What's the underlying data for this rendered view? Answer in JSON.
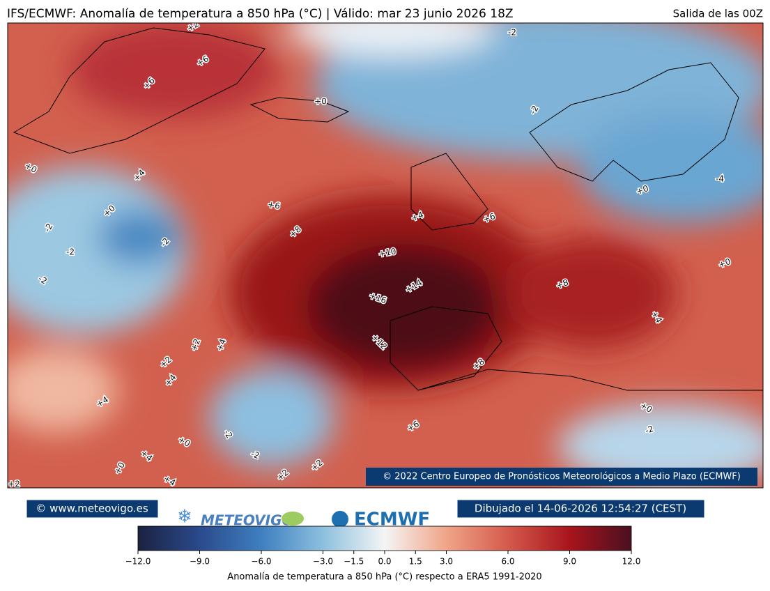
{
  "header": {
    "title": "IFS/ECMWF: Anomalía de temperatura a 850 hPa (°C) | Válido: mar 23 junio 2026 18Z",
    "run": "Salida de las 00Z"
  },
  "map": {
    "contour_labels": [
      "+2",
      "+6",
      "+6",
      "-2",
      "+0",
      "-2",
      "+0",
      "+4",
      "+0",
      "-4",
      "+6",
      "+0",
      "-2",
      "+4",
      "+6",
      "+8",
      "-2",
      "-2",
      "+10",
      "+0",
      "-2",
      "+14",
      "+8",
      "+16",
      "+4",
      "+12",
      "+2",
      "+4",
      "+2",
      "+4",
      "+8",
      "+4",
      "+0",
      "+6",
      "-2",
      "-2",
      "+0",
      "-2",
      "+4",
      "+0",
      "+2",
      "+2",
      "+4",
      "+2"
    ],
    "copyright": "© 2022 Centro Europeo de Pronósticos Meteorológicos a Medio Plazo (ECMWF)"
  },
  "footer": {
    "website": "© www.meteovigo.es",
    "logo_meteovigo": "METEOVIGO",
    "logo_ecmwf": "ECMWF",
    "drawn": "Dibujado el 14-06-2026 12:54:27 (CEST)"
  },
  "colorbar": {
    "label": "Anomalía de temperatura a 850 hPa (°C) respecto a ERA5 1991-2020",
    "lim": [
      -12,
      12
    ],
    "ticks": [
      {
        "value": -12,
        "label": "−12.0"
      },
      {
        "value": -9,
        "label": "−9.0"
      },
      {
        "value": -6,
        "label": "−6.0"
      },
      {
        "value": -3,
        "label": "−3.0"
      },
      {
        "value": -1.5,
        "label": "−1.5"
      },
      {
        "value": 0,
        "label": "0.0"
      },
      {
        "value": 1.5,
        "label": "1.5"
      },
      {
        "value": 3,
        "label": "3.0"
      },
      {
        "value": 6,
        "label": "6.0"
      },
      {
        "value": 9,
        "label": "9.0"
      },
      {
        "value": 12,
        "label": "12.0"
      }
    ],
    "colors": [
      "#1b2240",
      "#2a4a8c",
      "#3f7fc0",
      "#8cc0de",
      "#f5f5f5",
      "#f0a488",
      "#d45a4c",
      "#a8141c",
      "#4a1020"
    ]
  }
}
